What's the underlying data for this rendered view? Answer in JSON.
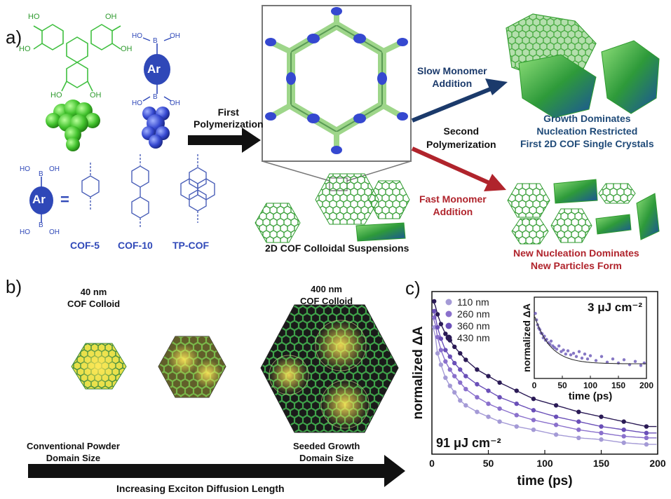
{
  "panels": {
    "a": "a)",
    "b": "b)",
    "c": "c)"
  },
  "panel_a": {
    "hhtp_oh_labels": [
      "HO",
      "OH",
      "HO",
      "OH",
      "HO",
      "OH"
    ],
    "boronic_top": {
      "ho": "HO",
      "b": "B",
      "oh": "OH",
      "ar": "Ar",
      "ho2": "HO",
      "b2": "B",
      "oh2": "OH"
    },
    "legend_ar": {
      "ho": "HO",
      "b": "B",
      "oh": "OH",
      "ar": "Ar",
      "eq": "=",
      "ho2": "HO",
      "b2": "B",
      "oh2": "OH"
    },
    "linkers": [
      "COF-5",
      "COF-10",
      "TP-COF"
    ],
    "first_polymerization": [
      "First",
      "Polymerization"
    ],
    "second_polymerization": [
      "Second",
      "Polymerization"
    ],
    "suspensions_label": "2D COF Colloidal Suspensions",
    "slow_addition": [
      "Slow Monomer",
      "Addition"
    ],
    "fast_addition": [
      "Fast Monomer",
      "Addition"
    ],
    "slow_result": [
      "Growth Dominates",
      "Nucleation Restricted",
      "First 2D COF Single Crystals"
    ],
    "fast_result": [
      "New Nucleation Dominates",
      "New Particles Form"
    ],
    "colors": {
      "green": "#3fbf3f",
      "blue": "#2f48b8",
      "navy": "#1b3a6b",
      "red": "#b0242c"
    }
  },
  "panel_b": {
    "colloid_40": [
      "40 nm",
      "COF Colloid"
    ],
    "colloid_400": [
      "400 nm",
      "COF Colloid"
    ],
    "conventional": [
      "Conventional Powder",
      "Domain Size"
    ],
    "seeded": [
      "Seeded Growth",
      "Domain Size"
    ],
    "arrow_label": "Increasing Exciton Diffusion Length"
  },
  "chart_data": [
    {
      "type": "scatter",
      "xlabel": "time (ps)",
      "ylabel": "normalized ΔA",
      "xlim": [
        0,
        200
      ],
      "x_ticks": [
        "0",
        "50",
        "100",
        "150",
        "200"
      ],
      "annotation": "91 μJ cm⁻²",
      "legend_placement": "top-left",
      "series": [
        {
          "name": "110 nm",
          "color": "#a49ad6",
          "tau": 38,
          "points": [
            [
              2,
              0.78
            ],
            [
              5,
              0.62
            ],
            [
              8,
              0.55
            ],
            [
              12,
              0.47
            ],
            [
              16,
              0.42
            ],
            [
              20,
              0.38
            ],
            [
              25,
              0.33
            ],
            [
              30,
              0.3
            ],
            [
              40,
              0.26
            ],
            [
              50,
              0.23
            ],
            [
              60,
              0.2
            ],
            [
              75,
              0.17
            ],
            [
              90,
              0.15
            ],
            [
              110,
              0.12
            ],
            [
              130,
              0.1
            ],
            [
              150,
              0.09
            ],
            [
              170,
              0.07
            ],
            [
              190,
              0.06
            ]
          ]
        },
        {
          "name": "260 nm",
          "color": "#8a70cc",
          "tau": 60,
          "points": [
            [
              2,
              0.84
            ],
            [
              5,
              0.72
            ],
            [
              8,
              0.64
            ],
            [
              12,
              0.57
            ],
            [
              16,
              0.52
            ],
            [
              20,
              0.48
            ],
            [
              25,
              0.44
            ],
            [
              30,
              0.4
            ],
            [
              40,
              0.35
            ],
            [
              50,
              0.31
            ],
            [
              60,
              0.28
            ],
            [
              75,
              0.24
            ],
            [
              90,
              0.21
            ],
            [
              110,
              0.18
            ],
            [
              130,
              0.15
            ],
            [
              150,
              0.13
            ],
            [
              170,
              0.11
            ],
            [
              190,
              0.1
            ]
          ]
        },
        {
          "name": "360 nm",
          "color": "#6a4fb8",
          "tau": 80,
          "points": [
            [
              2,
              0.88
            ],
            [
              5,
              0.78
            ],
            [
              8,
              0.71
            ],
            [
              12,
              0.64
            ],
            [
              16,
              0.6
            ],
            [
              20,
              0.56
            ],
            [
              25,
              0.52
            ],
            [
              30,
              0.48
            ],
            [
              40,
              0.43
            ],
            [
              50,
              0.39
            ],
            [
              60,
              0.35
            ],
            [
              75,
              0.31
            ],
            [
              90,
              0.27
            ],
            [
              110,
              0.23
            ],
            [
              130,
              0.2
            ],
            [
              150,
              0.17
            ],
            [
              170,
              0.15
            ],
            [
              190,
              0.13
            ]
          ]
        },
        {
          "name": "430 nm",
          "color": "#2a1a55",
          "tau": 105,
          "points": [
            [
              2,
              0.94
            ],
            [
              5,
              0.86
            ],
            [
              8,
              0.8
            ],
            [
              12,
              0.74
            ],
            [
              16,
              0.7
            ],
            [
              20,
              0.66
            ],
            [
              25,
              0.62
            ],
            [
              30,
              0.58
            ],
            [
              40,
              0.52
            ],
            [
              50,
              0.48
            ],
            [
              60,
              0.44
            ],
            [
              75,
              0.39
            ],
            [
              90,
              0.34
            ],
            [
              110,
              0.3
            ],
            [
              130,
              0.26
            ],
            [
              150,
              0.23
            ],
            [
              170,
              0.2
            ],
            [
              190,
              0.17
            ]
          ]
        }
      ]
    },
    {
      "type": "scatter",
      "xlabel": "time (ps)",
      "ylabel": "normalized ΔA",
      "xlim": [
        0,
        200
      ],
      "x_ticks": [
        "0",
        "50",
        "100",
        "150",
        "200"
      ],
      "annotation": "3 μJ cm⁻²",
      "series": [
        {
          "name": "",
          "color": "#5e4ab0",
          "points": [
            [
              2,
              0.8
            ],
            [
              4,
              0.72
            ],
            [
              6,
              0.66
            ],
            [
              8,
              0.62
            ],
            [
              10,
              0.6
            ],
            [
              12,
              0.56
            ],
            [
              14,
              0.55
            ],
            [
              16,
              0.5
            ],
            [
              18,
              0.52
            ],
            [
              20,
              0.47
            ],
            [
              22,
              0.48
            ],
            [
              25,
              0.44
            ],
            [
              28,
              0.42
            ],
            [
              30,
              0.46
            ],
            [
              33,
              0.4
            ],
            [
              36,
              0.38
            ],
            [
              40,
              0.36
            ],
            [
              44,
              0.4
            ],
            [
              48,
              0.33
            ],
            [
              52,
              0.35
            ],
            [
              56,
              0.3
            ],
            [
              60,
              0.34
            ],
            [
              65,
              0.29
            ],
            [
              70,
              0.31
            ],
            [
              75,
              0.27
            ],
            [
              80,
              0.33
            ],
            [
              85,
              0.25
            ],
            [
              90,
              0.3
            ],
            [
              95,
              0.24
            ],
            [
              100,
              0.28
            ],
            [
              110,
              0.22
            ],
            [
              120,
              0.27
            ],
            [
              130,
              0.2
            ],
            [
              140,
              0.24
            ],
            [
              150,
              0.19
            ],
            [
              160,
              0.23
            ],
            [
              170,
              0.17
            ],
            [
              180,
              0.21
            ],
            [
              190,
              0.16
            ],
            [
              196,
              0.19
            ]
          ]
        }
      ]
    }
  ]
}
